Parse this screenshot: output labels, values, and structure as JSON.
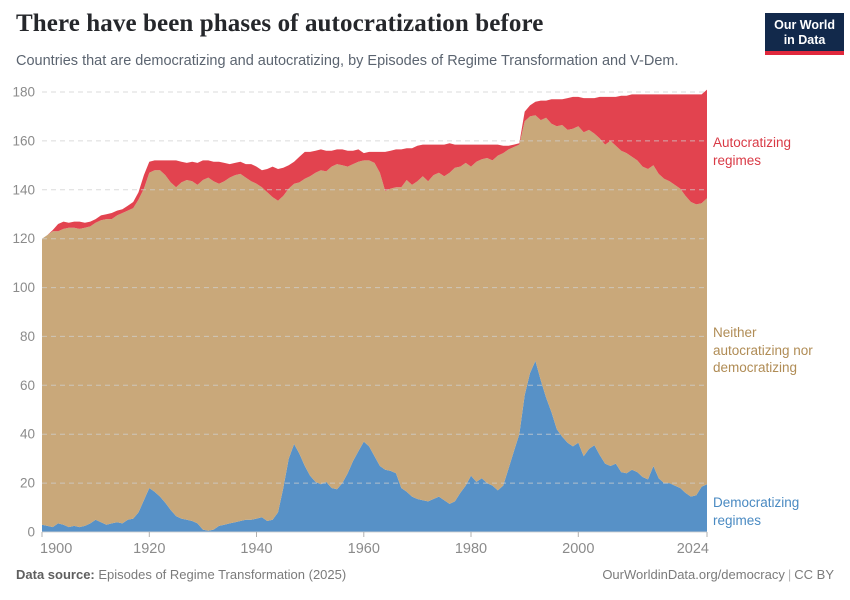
{
  "header": {
    "logo": {
      "line1": "Our World",
      "line2": "in Data"
    }
  },
  "footer": {
    "source_label": "Data source:",
    "source_value": " Episodes of Regime Transformation (2025)",
    "link": "OurWorldinData.org/democracy",
    "separator": "|",
    "license": "CC BY"
  },
  "chart_data": {
    "type": "area",
    "stacked": true,
    "title": "There have been phases of autocratization before",
    "subtitle": "Countries that are democratizing and autocratizing, by Episodes of Regime Transformation and V-Dem.",
    "xlabel": "",
    "ylabel": "",
    "x_start": 1900,
    "x_end": 2024,
    "ylim": [
      0,
      180
    ],
    "yticks": [
      0,
      20,
      40,
      60,
      80,
      100,
      120,
      140,
      160,
      180
    ],
    "xticks": [
      1900,
      1920,
      1940,
      1960,
      1980,
      2000,
      2024
    ],
    "grid": "dashed-horizontal",
    "legend_position": "right-edge-direct-labels",
    "series": [
      {
        "name": "Democratizing regimes",
        "color": "#5791c7",
        "label_color": "#4a8ac2",
        "values": [
          3,
          2.5,
          2,
          3.5,
          3,
          2,
          2.5,
          2,
          2.5,
          3.5,
          5,
          4,
          3,
          3.5,
          4,
          3.5,
          5,
          5.5,
          8,
          13,
          18,
          16.5,
          14.5,
          12,
          9,
          6.5,
          5.5,
          5,
          4.5,
          3.5,
          1,
          0.5,
          1,
          2.5,
          3,
          3.5,
          4,
          4.5,
          5,
          5,
          5.5,
          6,
          4.5,
          5,
          8,
          18,
          30,
          36,
          32,
          27,
          23,
          20.5,
          19.5,
          20.5,
          18,
          17.5,
          20,
          24,
          29,
          33,
          37,
          35,
          31,
          27,
          25.5,
          25,
          24,
          18,
          16.5,
          14.5,
          13.5,
          13,
          12.5,
          13.5,
          14.5,
          13,
          11.5,
          12.5,
          16,
          19,
          23,
          20.5,
          22,
          20,
          19,
          17,
          19,
          26,
          33,
          40,
          56,
          65,
          70,
          62,
          55,
          49,
          42,
          39,
          36.5,
          35,
          36.5,
          31,
          34,
          35.5,
          31.5,
          28,
          27,
          28,
          24.5,
          24,
          25.5,
          24.5,
          22.5,
          21.5,
          27,
          22,
          20,
          20,
          19,
          18,
          16,
          14.5,
          15,
          18.5,
          19.5
        ]
      },
      {
        "name": "Neither autocratizing nor democratizing",
        "color": "#c9a87a",
        "label_color": "#b08c55",
        "values": [
          117,
          119,
          121,
          119.5,
          121,
          122.5,
          122,
          122,
          122,
          121.5,
          121.5,
          123.5,
          125,
          124.5,
          125.5,
          127,
          126.5,
          127,
          128,
          127.5,
          129,
          131.5,
          133.5,
          134,
          134,
          134.5,
          137.5,
          139,
          139,
          138.5,
          143,
          144.5,
          142.5,
          140,
          140.5,
          141.5,
          142,
          142,
          140,
          138.5,
          137,
          135,
          134.5,
          132,
          127.5,
          119.5,
          110.5,
          106.5,
          111,
          117.5,
          122.5,
          126.5,
          128.5,
          127,
          131.5,
          133,
          130,
          125.5,
          121.5,
          118.5,
          115,
          117,
          120,
          120,
          114,
          115.5,
          117,
          123,
          127.5,
          127.5,
          130,
          132.5,
          131,
          132.5,
          132.5,
          132.5,
          135.5,
          136.5,
          133.5,
          132,
          126.5,
          131,
          130.5,
          133,
          133,
          137,
          136,
          130.5,
          124.5,
          118.5,
          112,
          105,
          100.5,
          106.5,
          114.5,
          118,
          124,
          127.5,
          128,
          130,
          129.5,
          132.5,
          130.5,
          127.5,
          129.5,
          130.5,
          133,
          130,
          131.5,
          131,
          128,
          127.5,
          127,
          127,
          123,
          124.5,
          124.5,
          123.5,
          123,
          122.5,
          121.5,
          120.5,
          119,
          116,
          117
        ]
      },
      {
        "name": "Autocratizing regimes",
        "color": "#e2434f",
        "label_color": "#d93a46",
        "values": [
          0,
          0,
          0.5,
          3,
          3,
          2,
          2.5,
          3,
          2,
          2,
          1.5,
          2,
          2,
          2.5,
          2,
          1.5,
          2,
          2.5,
          3,
          5.5,
          4.5,
          4,
          4,
          6,
          9,
          11,
          8.5,
          7,
          8,
          9,
          8,
          7,
          8,
          9,
          7.5,
          5.5,
          5,
          5,
          5.5,
          7,
          7,
          7,
          9.5,
          12.5,
          13,
          11.5,
          9.5,
          9,
          10.5,
          11,
          10,
          9,
          8.5,
          8.5,
          6.5,
          6,
          6.5,
          6.5,
          5.5,
          5,
          3,
          3.5,
          4.5,
          8.5,
          16,
          15.5,
          15.5,
          15.5,
          13,
          15,
          14.5,
          13,
          15,
          12.5,
          11.5,
          13,
          12,
          9.5,
          9,
          7.5,
          9,
          7,
          6,
          5.5,
          6.5,
          4.5,
          3,
          1.5,
          1,
          0.5,
          4,
          4.5,
          5.5,
          8,
          7,
          10,
          11,
          10.5,
          13,
          13,
          12,
          14,
          13,
          14.5,
          17,
          19.5,
          18,
          20,
          22.5,
          23.5,
          25.5,
          27,
          29.5,
          30.5,
          29,
          32.5,
          34.5,
          35.5,
          37,
          38.5,
          41.5,
          44,
          45,
          44.5,
          44.5
        ]
      }
    ]
  }
}
